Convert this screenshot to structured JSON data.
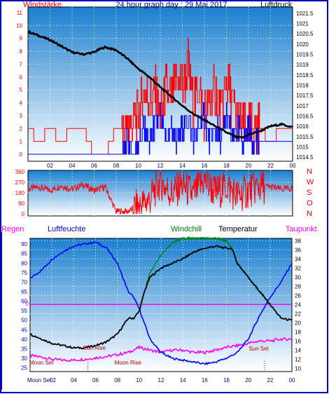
{
  "chart_data": [
    {
      "type": "line",
      "title": "24 hour graph day : 29 Mai 2017",
      "left_axis_label": "Windstärke",
      "right_axis_label": "Luftdruck",
      "x_tick_labels": [
        "02",
        "04",
        "06",
        "08",
        "10",
        "12",
        "14",
        "16",
        "18",
        "20",
        "22",
        "00"
      ],
      "left_ticks": [
        "11",
        "10",
        "9",
        "8",
        "7",
        "6",
        "5",
        "4",
        "3",
        "2",
        "1",
        "0"
      ],
      "right_ticks": [
        "1021.5",
        "1021",
        "1020.5",
        "1020",
        "1019.5",
        "1019",
        "1018.5",
        "1018",
        "1017.5",
        "1017",
        "1016.5",
        "1016",
        "1015.5",
        "1015",
        "1014.5"
      ],
      "left_range": [
        0,
        11
      ],
      "right_range": [
        1014.3,
        1021.8
      ],
      "grid": true,
      "series": [
        {
          "name": "Luftdruck",
          "axis": "right",
          "color": "#000000",
          "x": [
            0,
            1,
            2,
            3,
            4,
            5,
            6,
            6.5,
            7,
            8,
            9,
            10,
            11,
            12,
            13,
            14,
            15,
            16,
            17,
            18,
            19,
            19.5,
            20,
            21,
            22,
            23,
            24
          ],
          "y": [
            1020.6,
            1020.4,
            1020.2,
            1019.9,
            1019.6,
            1019.5,
            1019.6,
            1019.75,
            1019.85,
            1019.7,
            1019.3,
            1018.8,
            1018.4,
            1017.9,
            1017.45,
            1017.0,
            1016.6,
            1016.3,
            1016.0,
            1015.7,
            1015.45,
            1015.45,
            1015.6,
            1015.75,
            1016.0,
            1016.1,
            1015.95
          ]
        },
        {
          "name": "Windgeschwindigkeit",
          "axis": "left",
          "color": "#0000ff",
          "x": [
            0,
            8,
            8.5,
            9,
            9.5,
            10,
            10.5,
            11,
            11.5,
            12,
            12.5,
            13,
            13.5,
            14,
            14.5,
            15,
            15.5,
            16,
            16.5,
            17,
            17.5,
            18,
            18.5,
            19,
            19.5,
            20,
            20.5,
            21,
            22,
            24
          ],
          "y": [
            0,
            0,
            0,
            1,
            0,
            1,
            2,
            1,
            2,
            3,
            1,
            2,
            1,
            2,
            3,
            1,
            2,
            3,
            1,
            2,
            1,
            3,
            1,
            2,
            1,
            2,
            1,
            1,
            1,
            1
          ]
        },
        {
          "name": "Windböen",
          "axis": "left",
          "color": "#ff0000",
          "x": [
            0,
            1,
            2,
            3,
            4,
            5,
            6,
            7,
            8,
            9,
            10,
            10.5,
            11,
            11.5,
            12,
            12.5,
            13,
            13.5,
            14,
            14.5,
            15,
            15.5,
            16,
            16.5,
            17,
            17.5,
            18,
            18.5,
            19,
            19.5,
            20,
            21,
            22,
            23,
            24
          ],
          "y": [
            2,
            1,
            2,
            1,
            2,
            2,
            0,
            0,
            2,
            2,
            3,
            5,
            4,
            5,
            3,
            5,
            4,
            6,
            5,
            7,
            4,
            5,
            3,
            4,
            5,
            3,
            6,
            4,
            3,
            2,
            2,
            2,
            1,
            2,
            2
          ]
        }
      ]
    },
    {
      "type": "line",
      "title": "",
      "y_ticks": [
        "360",
        "270",
        "180",
        "90",
        "0"
      ],
      "right_labels": [
        "N",
        "W",
        "S",
        "O",
        "N"
      ],
      "y_range": [
        0,
        360
      ],
      "series": [
        {
          "name": "Windrichtung",
          "color": "#ff0000",
          "x": [
            0,
            1,
            2,
            3,
            4,
            5,
            6,
            7,
            8,
            9,
            10,
            11,
            12,
            13,
            14,
            15,
            16,
            17,
            18,
            19,
            20,
            21,
            22,
            23,
            24
          ],
          "y": [
            210,
            230,
            200,
            240,
            210,
            250,
            200,
            230,
            20,
            20,
            60,
            120,
            280,
            170,
            250,
            160,
            290,
            180,
            240,
            150,
            200,
            240,
            230,
            210,
            220
          ]
        }
      ]
    },
    {
      "type": "line",
      "title": "",
      "header_labels": [
        "Regen",
        "Luftfeuchte",
        "Windchill",
        "Temperatur",
        "Taupunkt"
      ],
      "left_ticks": [
        "90",
        "85",
        "80",
        "75",
        "70",
        "65",
        "60",
        "55",
        "50",
        "45",
        "40",
        "35",
        "30",
        "25"
      ],
      "left_range": [
        23,
        93
      ],
      "right_ticks": [
        "38",
        "36",
        "34",
        "32",
        "30",
        "28",
        "26",
        "24",
        "22",
        "20",
        "18",
        "16",
        "14",
        "12",
        "10"
      ],
      "right_range": [
        9.3,
        38.5
      ],
      "zero_label": "0",
      "x_tick_labels": [
        "04",
        "06",
        "08",
        "10",
        "12",
        "14",
        "16",
        "18",
        "20",
        "22",
        "00"
      ],
      "moon_set_bottom": "Moon Set",
      "time_prefix": "02",
      "annotations": [
        {
          "text": "Moon Set"
        },
        {
          "text": "Sun Rise"
        },
        {
          "text": "Moon Rise"
        },
        {
          "text": "Sun Set"
        }
      ],
      "series": [
        {
          "name": "Luftfeuchte",
          "axis": "left",
          "color": "#0000ff",
          "x": [
            0,
            1,
            2,
            3,
            4,
            5,
            6,
            7,
            8,
            9,
            9.5,
            10,
            10.5,
            11,
            12,
            13,
            14,
            15,
            16,
            17,
            18,
            19,
            20,
            21,
            22,
            23,
            24
          ],
          "y": [
            72,
            76,
            82,
            86,
            89,
            90,
            91,
            88,
            80,
            65,
            62,
            56,
            48,
            40,
            33,
            30,
            29,
            28,
            27,
            28,
            30,
            33,
            40,
            52,
            62,
            70,
            80
          ]
        },
        {
          "name": "Temperatur",
          "axis": "right",
          "color": "#000000",
          "x": [
            0,
            1,
            2,
            3,
            4,
            5,
            6,
            7,
            8,
            9,
            9.5,
            10,
            10.5,
            11,
            12,
            13,
            14,
            15,
            16,
            17,
            18,
            18.5,
            19,
            20,
            21,
            22,
            23,
            24
          ],
          "y": [
            17.5,
            16.5,
            15.5,
            15,
            14.5,
            14.5,
            15,
            15.8,
            17.5,
            21,
            21,
            22.5,
            27,
            30,
            32,
            33,
            34,
            35.5,
            36.3,
            36.8,
            36.3,
            36.3,
            33,
            30,
            27,
            24,
            21,
            20.5
          ]
        },
        {
          "name": "Windchill",
          "axis": "right",
          "color": "#008000",
          "x": [
            10,
            10.5,
            11,
            12,
            13,
            14,
            15,
            16,
            17,
            18,
            18.5,
            19,
            20,
            21,
            22
          ],
          "y": [
            22.5,
            27,
            31,
            35,
            37.5,
            38.5,
            38.5,
            38.5,
            38.5,
            38,
            36.3,
            33,
            30,
            27,
            24
          ]
        },
        {
          "name": "Taupunkt",
          "axis": "right",
          "color": "#ff00ff",
          "x": [
            0,
            1,
            2,
            3,
            4,
            5,
            6,
            7,
            8,
            9,
            10,
            11,
            12,
            13,
            14,
            15,
            16,
            17,
            18,
            19,
            20,
            21,
            22,
            23,
            24
          ],
          "y": [
            12.8,
            12.5,
            12,
            11.8,
            11.8,
            12,
            12.3,
            12.6,
            13,
            13.5,
            14.6,
            14,
            13.5,
            14,
            14,
            13.5,
            13.5,
            14,
            14.6,
            15,
            15.5,
            16,
            16,
            16.4,
            16.4
          ]
        },
        {
          "name": "Regen",
          "axis": "right",
          "color": "#ff00ff",
          "x": [
            0,
            24
          ],
          "y": [
            24,
            24
          ]
        }
      ]
    }
  ],
  "colors": {
    "frame": "#0000c0",
    "gradient_top": "#1a7fd0",
    "gradient_bottom": "#ffffff",
    "grid_dots": "#ffffff"
  }
}
